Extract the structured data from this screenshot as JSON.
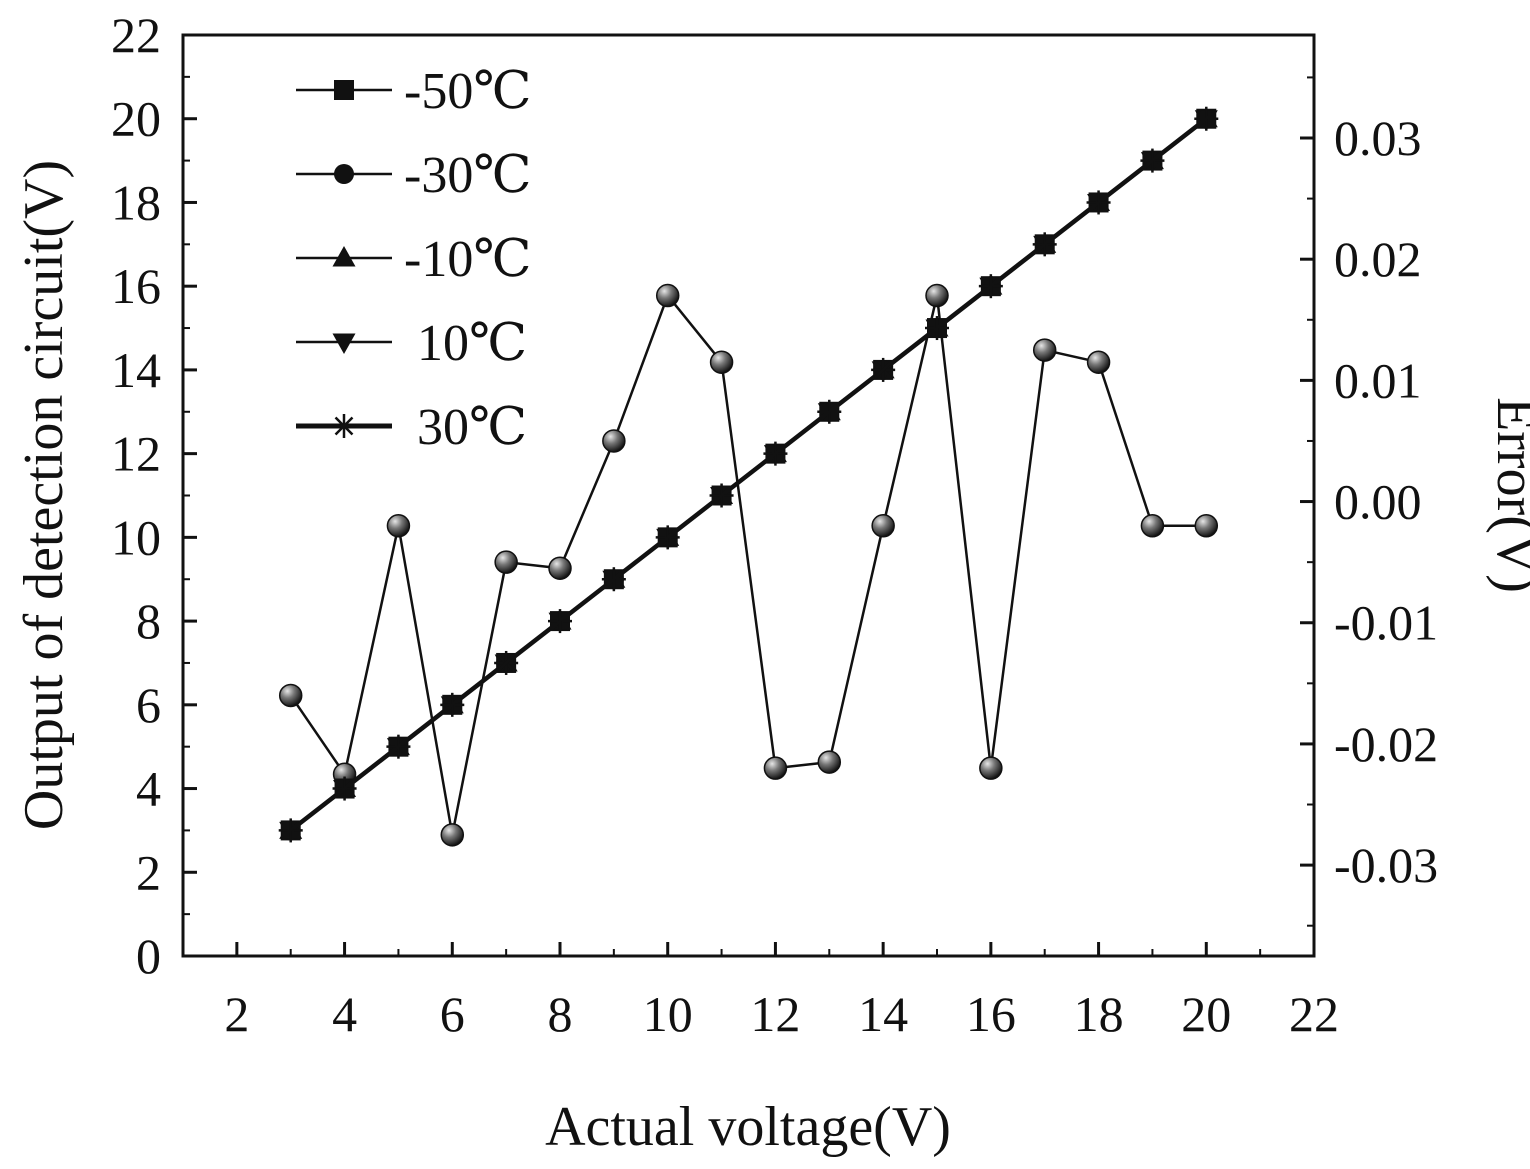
{
  "chart_data": {
    "type": "line",
    "title": "",
    "xlabel": "Actual voltage(V)",
    "ylabel": "Output of detection circuit(V)",
    "y2label": "Error(V)",
    "xlim": [
      1,
      22
    ],
    "ylim": [
      0,
      22
    ],
    "y2lim": [
      -0.0375,
      0.0385
    ],
    "xticks": [
      2,
      4,
      6,
      8,
      10,
      12,
      14,
      16,
      18,
      20,
      22
    ],
    "xtick_labels": [
      "2",
      "4",
      "6",
      "8",
      "10",
      "12",
      "14",
      "16",
      "18",
      "20",
      "22"
    ],
    "yticks": [
      0,
      2,
      4,
      6,
      8,
      10,
      12,
      14,
      16,
      18,
      20,
      22
    ],
    "ytick_labels": [
      "0",
      "2",
      "4",
      "6",
      "8",
      "10",
      "12",
      "14",
      "16",
      "18",
      "20",
      "22"
    ],
    "y2ticks": [
      0.03,
      0.02,
      0.01,
      0.0,
      -0.01,
      -0.02,
      -0.03
    ],
    "y2tick_labels": [
      "0.03",
      "0.02",
      "0.01",
      "0.00",
      "-0.01",
      "-0.02",
      "-0.03"
    ],
    "grid": false,
    "legend_position": "top-left",
    "x": [
      3,
      4,
      5,
      6,
      7,
      8,
      9,
      10,
      11,
      12,
      13,
      14,
      15,
      16,
      17,
      18,
      19,
      20
    ],
    "series": [
      {
        "name": "-50℃",
        "marker": "square",
        "axis": "left",
        "values": [
          3,
          4,
          5,
          6,
          7,
          8,
          9,
          10,
          11,
          12,
          13,
          14,
          15,
          16,
          17,
          18,
          19,
          20
        ]
      },
      {
        "name": "-30℃",
        "marker": "circle",
        "axis": "left",
        "values": [
          3,
          4,
          5,
          6,
          7,
          8,
          9,
          10,
          11,
          12,
          13,
          14,
          15,
          16,
          17,
          18,
          19,
          20
        ]
      },
      {
        "name": "-10℃",
        "marker": "triangle-up",
        "axis": "left",
        "values": [
          3,
          4,
          5,
          6,
          7,
          8,
          9,
          10,
          11,
          12,
          13,
          14,
          15,
          16,
          17,
          18,
          19,
          20
        ]
      },
      {
        "name": " 10℃",
        "marker": "triangle-down",
        "axis": "left",
        "values": [
          3,
          4,
          5,
          6,
          7,
          8,
          9,
          10,
          11,
          12,
          13,
          14,
          15,
          16,
          17,
          18,
          19,
          20
        ]
      },
      {
        "name": " 30℃",
        "marker": "star",
        "axis": "left",
        "values": [
          3,
          4,
          5,
          6,
          7,
          8,
          9,
          10,
          11,
          12,
          13,
          14,
          15,
          16,
          17,
          18,
          19,
          20
        ]
      },
      {
        "name": "Error",
        "marker": "sphere",
        "axis": "right",
        "values": [
          -0.016,
          -0.0225,
          -0.002,
          -0.0275,
          -0.005,
          -0.0055,
          0.005,
          0.017,
          0.0115,
          -0.022,
          -0.0215,
          -0.002,
          0.017,
          -0.022,
          0.0125,
          0.0115,
          -0.002,
          -0.002
        ]
      }
    ]
  },
  "colors": {
    "line": "#111111",
    "marker": "#111111",
    "sphere_light": "#dddddd",
    "sphere_dark": "#1a1a1a"
  }
}
